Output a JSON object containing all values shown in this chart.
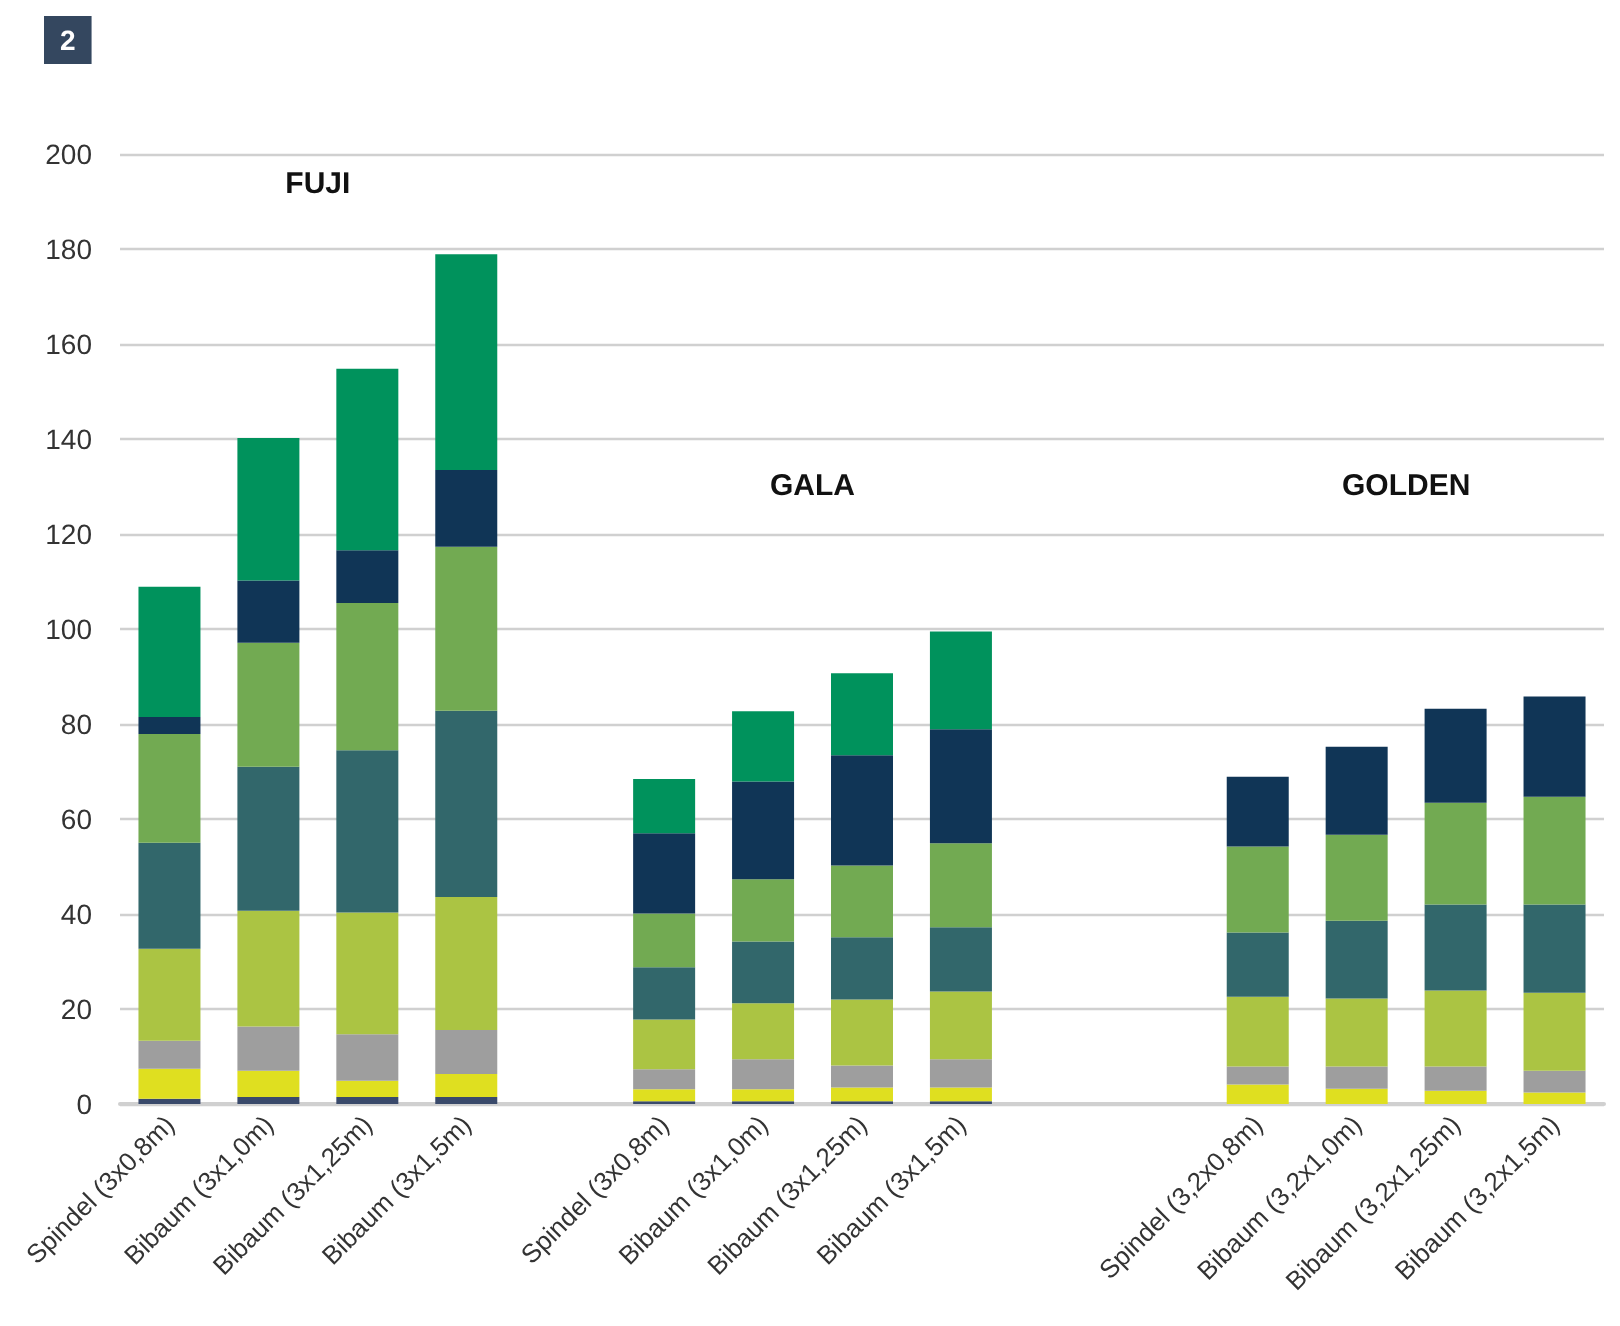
{
  "chart_data": {
    "type": "bar",
    "title": "2",
    "stacked": true,
    "grid": "y",
    "categories": [
      "Spindel (3x0,8m)",
      "Bibaum (3x1,0m)",
      "Bibaum (3x1,25m)",
      "Bibaum (3x1,5m)",
      null,
      "Spindel (3x0,8m)",
      "Bibaum (3x1,0m)",
      "Bibaum (3x1,25m)",
      "Bibaum (3x1,5m)",
      null,
      null,
      "Spindel (3,2x0,8m)",
      "Bibaum (3,2x1,0m)",
      "Bibaum (3,2x1,25m)",
      "Bibaum (3,2x1,5m)"
    ],
    "annotations": [
      "FUJI",
      "GALA",
      "GOLDEN"
    ],
    "ylim": [
      0,
      200
    ],
    "yticks": [
      0,
      20,
      40,
      60,
      80,
      100,
      120,
      140,
      160,
      180,
      200
    ],
    "series": [
      {
        "color": "#3a4a6b",
        "values": [
          1.1,
          1.5,
          1.5,
          1.5,
          null,
          0.6,
          0.6,
          0.6,
          0.6,
          null,
          null,
          null,
          null,
          null,
          null
        ]
      },
      {
        "color": "#dfdf20",
        "values": [
          6.3,
          5.5,
          3.4,
          4.8,
          null,
          2.5,
          2.5,
          2.9,
          2.9,
          null,
          null,
          4.1,
          3.2,
          2.8,
          2.4
        ]
      },
      {
        "color": "#9e9e9e",
        "values": [
          5.9,
          9.3,
          9.8,
          9.3,
          null,
          4.2,
          6.3,
          4.6,
          5.9,
          null,
          null,
          3.8,
          4.7,
          5.1,
          4.6
        ]
      },
      {
        "color": "#abc443",
        "values": [
          19.4,
          24.4,
          25.6,
          28.0,
          null,
          10.5,
          11.8,
          13.9,
          14.3,
          null,
          null,
          14.7,
          14.3,
          16.0,
          16.4
        ]
      },
      {
        "color": "#32676b",
        "values": [
          22.3,
          30.3,
          34.2,
          39.2,
          null,
          11.0,
          13.0,
          13.1,
          13.5,
          null,
          null,
          13.5,
          16.4,
          18.1,
          18.6
        ]
      },
      {
        "color": "#72aa52",
        "values": [
          22.9,
          26.1,
          31.0,
          34.5,
          null,
          11.3,
          13.1,
          15.1,
          17.7,
          null,
          null,
          18.1,
          18.1,
          21.4,
          22.7
        ]
      },
      {
        "color": "#103556",
        "values": [
          3.6,
          13.1,
          11.1,
          16.2,
          null,
          16.9,
          20.6,
          23.2,
          24.0,
          null,
          null,
          14.7,
          18.5,
          19.8,
          21.1
        ]
      },
      {
        "color": "#00925c",
        "values": [
          27.4,
          30.0,
          38.2,
          45.4,
          null,
          11.4,
          14.8,
          17.3,
          20.6,
          null,
          null,
          null,
          null,
          null,
          null
        ]
      }
    ]
  }
}
